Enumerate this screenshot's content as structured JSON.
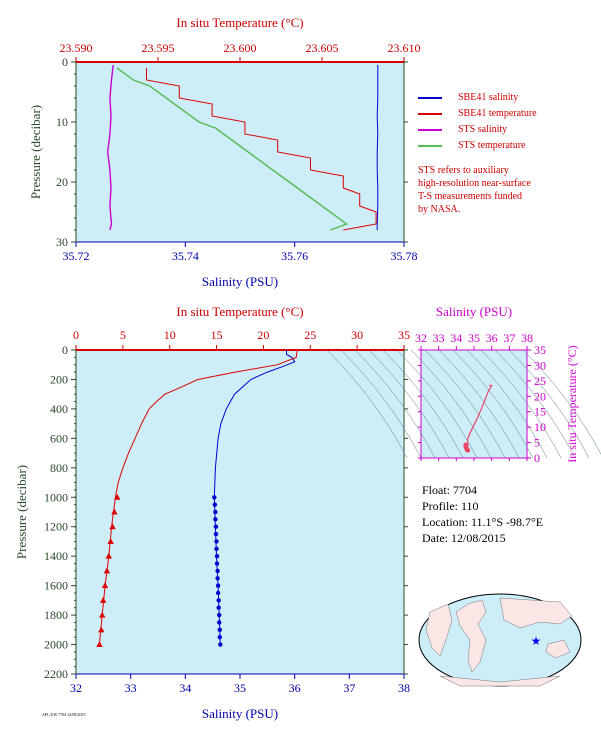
{
  "colors": {
    "plot_bg": "#cdeef8",
    "salinity_axis": "#0000aa",
    "temperature_axis": "#cc0000",
    "pressure_axis": "#2a4a2a",
    "sbe_salinity": "#0000cc",
    "sbe_temperature": "#dd0000",
    "sts_salinity": "#cc00cc",
    "sts_temperature": "#55bb55",
    "ts_axis": "#cc00cc"
  },
  "top_panel": {
    "temperature_axis_label": "In situ Temperature (°C)",
    "salinity_axis_label": "Salinity (PSU)",
    "pressure_axis_label": "Pressure (decibar)",
    "temperature_ticks": [
      "23.590",
      "23.595",
      "23.600",
      "23.605",
      "23.610"
    ],
    "salinity_ticks": [
      "35.72",
      "35.74",
      "35.76",
      "35.78"
    ],
    "pressure_ticks": [
      "0",
      "10",
      "20",
      "30"
    ],
    "legend": [
      {
        "label": "SBE41 salinity",
        "color": "#0000cc"
      },
      {
        "label": "SBE41 temperature",
        "color": "#dd0000"
      },
      {
        "label": "STS salinity",
        "color": "#cc00cc"
      },
      {
        "label": "STS temperature",
        "color": "#55bb55"
      }
    ],
    "note_lines": [
      "STS refers to auxiliary",
      "high-resolution near-surface",
      "T-S measurements funded",
      "by NASA."
    ]
  },
  "main_panel": {
    "temperature_axis_label": "In situ Temperature (°C)",
    "salinity_axis_label": "Salinity (PSU)",
    "pressure_axis_label": "Pressure (decibar)",
    "temperature_ticks": [
      "0",
      "5",
      "10",
      "15",
      "20",
      "25",
      "30",
      "35"
    ],
    "salinity_ticks": [
      "32",
      "33",
      "34",
      "35",
      "36",
      "37",
      "38"
    ],
    "pressure_ticks": [
      "0",
      "200",
      "400",
      "600",
      "800",
      "1000",
      "1200",
      "1400",
      "1600",
      "1800",
      "2000",
      "2200"
    ]
  },
  "ts_panel": {
    "salinity_axis_label": "Salinity (PSU)",
    "temperature_axis_label": "In situ Temperature (°C)",
    "salinity_ticks": [
      "32",
      "33",
      "34",
      "35",
      "36",
      "37",
      "38"
    ],
    "temperature_ticks": [
      "0",
      "5",
      "10",
      "15",
      "20",
      "25",
      "30",
      "35"
    ]
  },
  "float_info": {
    "float": "Float:  7704",
    "profile": "Profile:  110",
    "location": "Location:  11.1°S  -98.7°E",
    "date": "Date:  12/08/2015"
  },
  "footer_text": "APL/UW 7704 12/08/2015",
  "chart_data": [
    {
      "type": "line",
      "xlabel": "Salinity (PSU)",
      "x2label": "In situ Temperature (°C)",
      "ylabel": "Pressure (decibar)",
      "xlim": [
        35.72,
        35.78
      ],
      "x2lim": [
        23.59,
        23.61
      ],
      "ylim": [
        30,
        0
      ],
      "series": [
        {
          "name": "SBE41 salinity",
          "axis": "salinity",
          "points": [
            [
              35.7752,
              0.5
            ],
            [
              35.7752,
              3
            ],
            [
              35.7752,
              6
            ],
            [
              35.7751,
              9
            ],
            [
              35.7752,
              12
            ],
            [
              35.7751,
              15
            ],
            [
              35.7751,
              18
            ],
            [
              35.7752,
              21
            ],
            [
              35.7752,
              24
            ],
            [
              35.7751,
              27
            ],
            [
              35.7751,
              28
            ]
          ]
        },
        {
          "name": "SBE41 temperature",
          "axis": "temperature",
          "points": [
            [
              23.5943,
              1
            ],
            [
              23.5943,
              3
            ],
            [
              23.5963,
              4
            ],
            [
              23.5963,
              6
            ],
            [
              23.5983,
              7
            ],
            [
              23.5983,
              9
            ],
            [
              23.6003,
              10
            ],
            [
              23.6003,
              12
            ],
            [
              23.6023,
              13
            ],
            [
              23.6023,
              15
            ],
            [
              23.6043,
              16
            ],
            [
              23.6043,
              18
            ],
            [
              23.6063,
              19
            ],
            [
              23.6063,
              21
            ],
            [
              23.6073,
              22
            ],
            [
              23.6073,
              24
            ],
            [
              23.6083,
              25
            ],
            [
              23.6083,
              27
            ],
            [
              23.6063,
              28
            ]
          ]
        },
        {
          "name": "STS salinity",
          "axis": "salinity",
          "points": [
            [
              35.7268,
              0.5
            ],
            [
              35.7265,
              3
            ],
            [
              35.7262,
              6
            ],
            [
              35.7264,
              9
            ],
            [
              35.7262,
              12
            ],
            [
              35.7258,
              15
            ],
            [
              35.7262,
              18
            ],
            [
              35.7264,
              21
            ],
            [
              35.7262,
              24
            ],
            [
              35.7265,
              27
            ],
            [
              35.7262,
              28
            ]
          ]
        },
        {
          "name": "STS temperature",
          "axis": "temperature",
          "points": [
            [
              23.5925,
              1
            ],
            [
              23.5935,
              3
            ],
            [
              23.5945,
              4
            ],
            [
              23.5955,
              6
            ],
            [
              23.5965,
              8
            ],
            [
              23.5975,
              10
            ],
            [
              23.5985,
              11
            ],
            [
              23.5995,
              13
            ],
            [
              23.6005,
              15
            ],
            [
              23.6015,
              17
            ],
            [
              23.6025,
              19
            ],
            [
              23.6035,
              21
            ],
            [
              23.6045,
              23
            ],
            [
              23.6055,
              25
            ],
            [
              23.6065,
              27
            ],
            [
              23.6055,
              28
            ]
          ]
        }
      ]
    },
    {
      "type": "line",
      "xlabel": "Salinity (PSU)",
      "x2label": "In situ Temperature (°C)",
      "ylabel": "Pressure (decibar)",
      "xlim": [
        32,
        38
      ],
      "x2lim": [
        0,
        35
      ],
      "ylim": [
        2200,
        0
      ],
      "series": [
        {
          "name": "salinity",
          "axis": "salinity",
          "points": [
            [
              35.85,
              0
            ],
            [
              35.85,
              30
            ],
            [
              35.95,
              50
            ],
            [
              36.0,
              80
            ],
            [
              35.8,
              110
            ],
            [
              35.5,
              150
            ],
            [
              35.2,
              200
            ],
            [
              34.9,
              300
            ],
            [
              34.75,
              400
            ],
            [
              34.65,
              500
            ],
            [
              34.6,
              600
            ],
            [
              34.55,
              800
            ],
            [
              34.53,
              1000
            ],
            [
              34.55,
              1200
            ],
            [
              34.57,
              1400
            ],
            [
              34.6,
              1600
            ],
            [
              34.62,
              1800
            ],
            [
              34.64,
              2000
            ]
          ]
        },
        {
          "name": "temperature",
          "axis": "temperature",
          "points": [
            [
              23.6,
              0
            ],
            [
              23.5,
              50
            ],
            [
              21.5,
              100
            ],
            [
              17,
              150
            ],
            [
              13,
              200
            ],
            [
              11.3,
              250
            ],
            [
              9.5,
              300
            ],
            [
              8.6,
              350
            ],
            [
              7.8,
              400
            ],
            [
              7.0,
              500
            ],
            [
              6.3,
              600
            ],
            [
              5.6,
              700
            ],
            [
              5.0,
              800
            ],
            [
              4.5,
              900
            ],
            [
              4.2,
              1000
            ],
            [
              3.8,
              1200
            ],
            [
              3.5,
              1400
            ],
            [
              3.1,
              1600
            ],
            [
              2.8,
              1800
            ],
            [
              2.5,
              2000
            ]
          ]
        },
        {
          "name": "salinity_markers",
          "axis": "salinity",
          "marker": "dot",
          "points": [
            [
              34.53,
              1000
            ],
            [
              34.54,
              1050
            ],
            [
              34.55,
              1100
            ],
            [
              34.55,
              1150
            ],
            [
              34.56,
              1200
            ],
            [
              34.56,
              1250
            ],
            [
              34.57,
              1300
            ],
            [
              34.57,
              1350
            ],
            [
              34.58,
              1400
            ],
            [
              34.58,
              1450
            ],
            [
              34.59,
              1500
            ],
            [
              34.59,
              1550
            ],
            [
              34.6,
              1600
            ],
            [
              34.6,
              1650
            ],
            [
              34.61,
              1700
            ],
            [
              34.61,
              1750
            ],
            [
              34.62,
              1800
            ],
            [
              34.62,
              1850
            ],
            [
              34.63,
              1900
            ],
            [
              34.63,
              1950
            ],
            [
              34.64,
              2000
            ]
          ]
        },
        {
          "name": "temperature_markers",
          "axis": "temperature",
          "marker": "triangle",
          "points": [
            [
              4.4,
              1000
            ],
            [
              4.1,
              1100
            ],
            [
              3.9,
              1200
            ],
            [
              3.7,
              1300
            ],
            [
              3.5,
              1400
            ],
            [
              3.3,
              1500
            ],
            [
              3.1,
              1600
            ],
            [
              2.9,
              1700
            ],
            [
              2.8,
              1800
            ],
            [
              2.7,
              1900
            ],
            [
              2.5,
              2000
            ]
          ]
        }
      ]
    },
    {
      "type": "scatter",
      "xlabel": "Salinity (PSU)",
      "ylabel": "In situ Temperature (°C)",
      "xlim": [
        32,
        38
      ],
      "ylim": [
        0,
        35
      ],
      "series": [
        {
          "name": "TS curve",
          "points": [
            [
              34.53,
              4.2
            ],
            [
              34.55,
              3.5
            ],
            [
              34.6,
              2.8
            ],
            [
              34.64,
              2.5
            ],
            [
              34.65,
              6.3
            ],
            [
              34.75,
              7.8
            ],
            [
              34.9,
              9.5
            ],
            [
              35.2,
              13
            ],
            [
              35.5,
              17
            ],
            [
              35.8,
              21.5
            ],
            [
              36.0,
              23.5
            ],
            [
              35.85,
              23.6
            ]
          ]
        }
      ]
    }
  ]
}
